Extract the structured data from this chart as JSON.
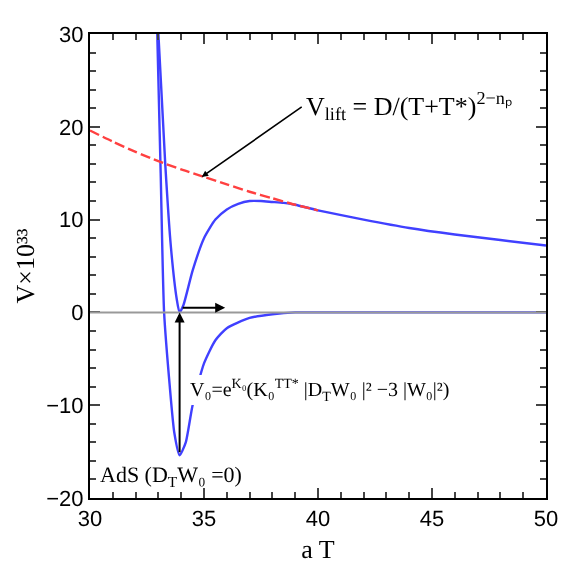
{
  "chart_data": {
    "type": "line",
    "xlabel": "a T",
    "ylabel": "V×10³³",
    "xlim": [
      30,
      50
    ],
    "xticks": [
      30,
      35,
      40,
      45,
      50
    ],
    "ylim": [
      -20,
      30
    ],
    "yticks": [
      -20,
      -10,
      0,
      10,
      20,
      30
    ],
    "legend": false,
    "marker": "none",
    "series": [
      {
        "color": "#ff4040",
        "line_style": "dashed",
        "x": [
          30,
          31,
          32,
          33,
          34,
          35,
          36,
          37,
          38,
          39,
          40
        ],
        "values": [
          19.6,
          18.4,
          17.3,
          16.3,
          15.4,
          14.6,
          13.8,
          13.0,
          12.3,
          11.6,
          11.0
        ]
      },
      {
        "color": "#4040ff",
        "line_style": "solid",
        "x": [
          33.0,
          33.3,
          33.55,
          33.8,
          33.93,
          34.1,
          34.5,
          35,
          35.5,
          36,
          36.5,
          37,
          37.5,
          38,
          38.5,
          39,
          40,
          42,
          44,
          46,
          48,
          50
        ],
        "values": [
          30,
          16,
          7,
          1.5,
          0,
          0.8,
          4.5,
          8,
          10,
          11.1,
          11.7,
          12,
          12,
          11.9,
          11.8,
          11.6,
          11.0,
          10.0,
          9.1,
          8.4,
          7.8,
          7.2
        ]
      },
      {
        "color": "#4040ff",
        "line_style": "solid",
        "x": [
          32.95,
          33.1,
          33.25,
          33.5,
          33.7,
          33.93,
          34.2,
          34.5,
          35,
          35.5,
          36,
          37,
          38,
          39,
          40,
          50
        ],
        "values": [
          30,
          15,
          0,
          -8,
          -13,
          -15.4,
          -14,
          -10,
          -5.5,
          -3,
          -1.7,
          -0.6,
          -0.2,
          0,
          0,
          0
        ]
      }
    ],
    "ref_lines": [
      {
        "axis": "y",
        "value": 0,
        "color": "#999999"
      }
    ],
    "annotations": [
      {
        "text": "V$_{lift}$ = D/(T+T*)$^{2−nₚ}$",
        "x": 34.9,
        "y": 14.6
      },
      "V₀=e$^{K₀}$(K₀$^{TT*}$ |D$_{T}$W₀ |² −3 |W₀|²)",
      {
        "text": "AdS (D$_{T}$W₀ =0)",
        "x": 33.93,
        "y": -15.4
      }
    ]
  }
}
